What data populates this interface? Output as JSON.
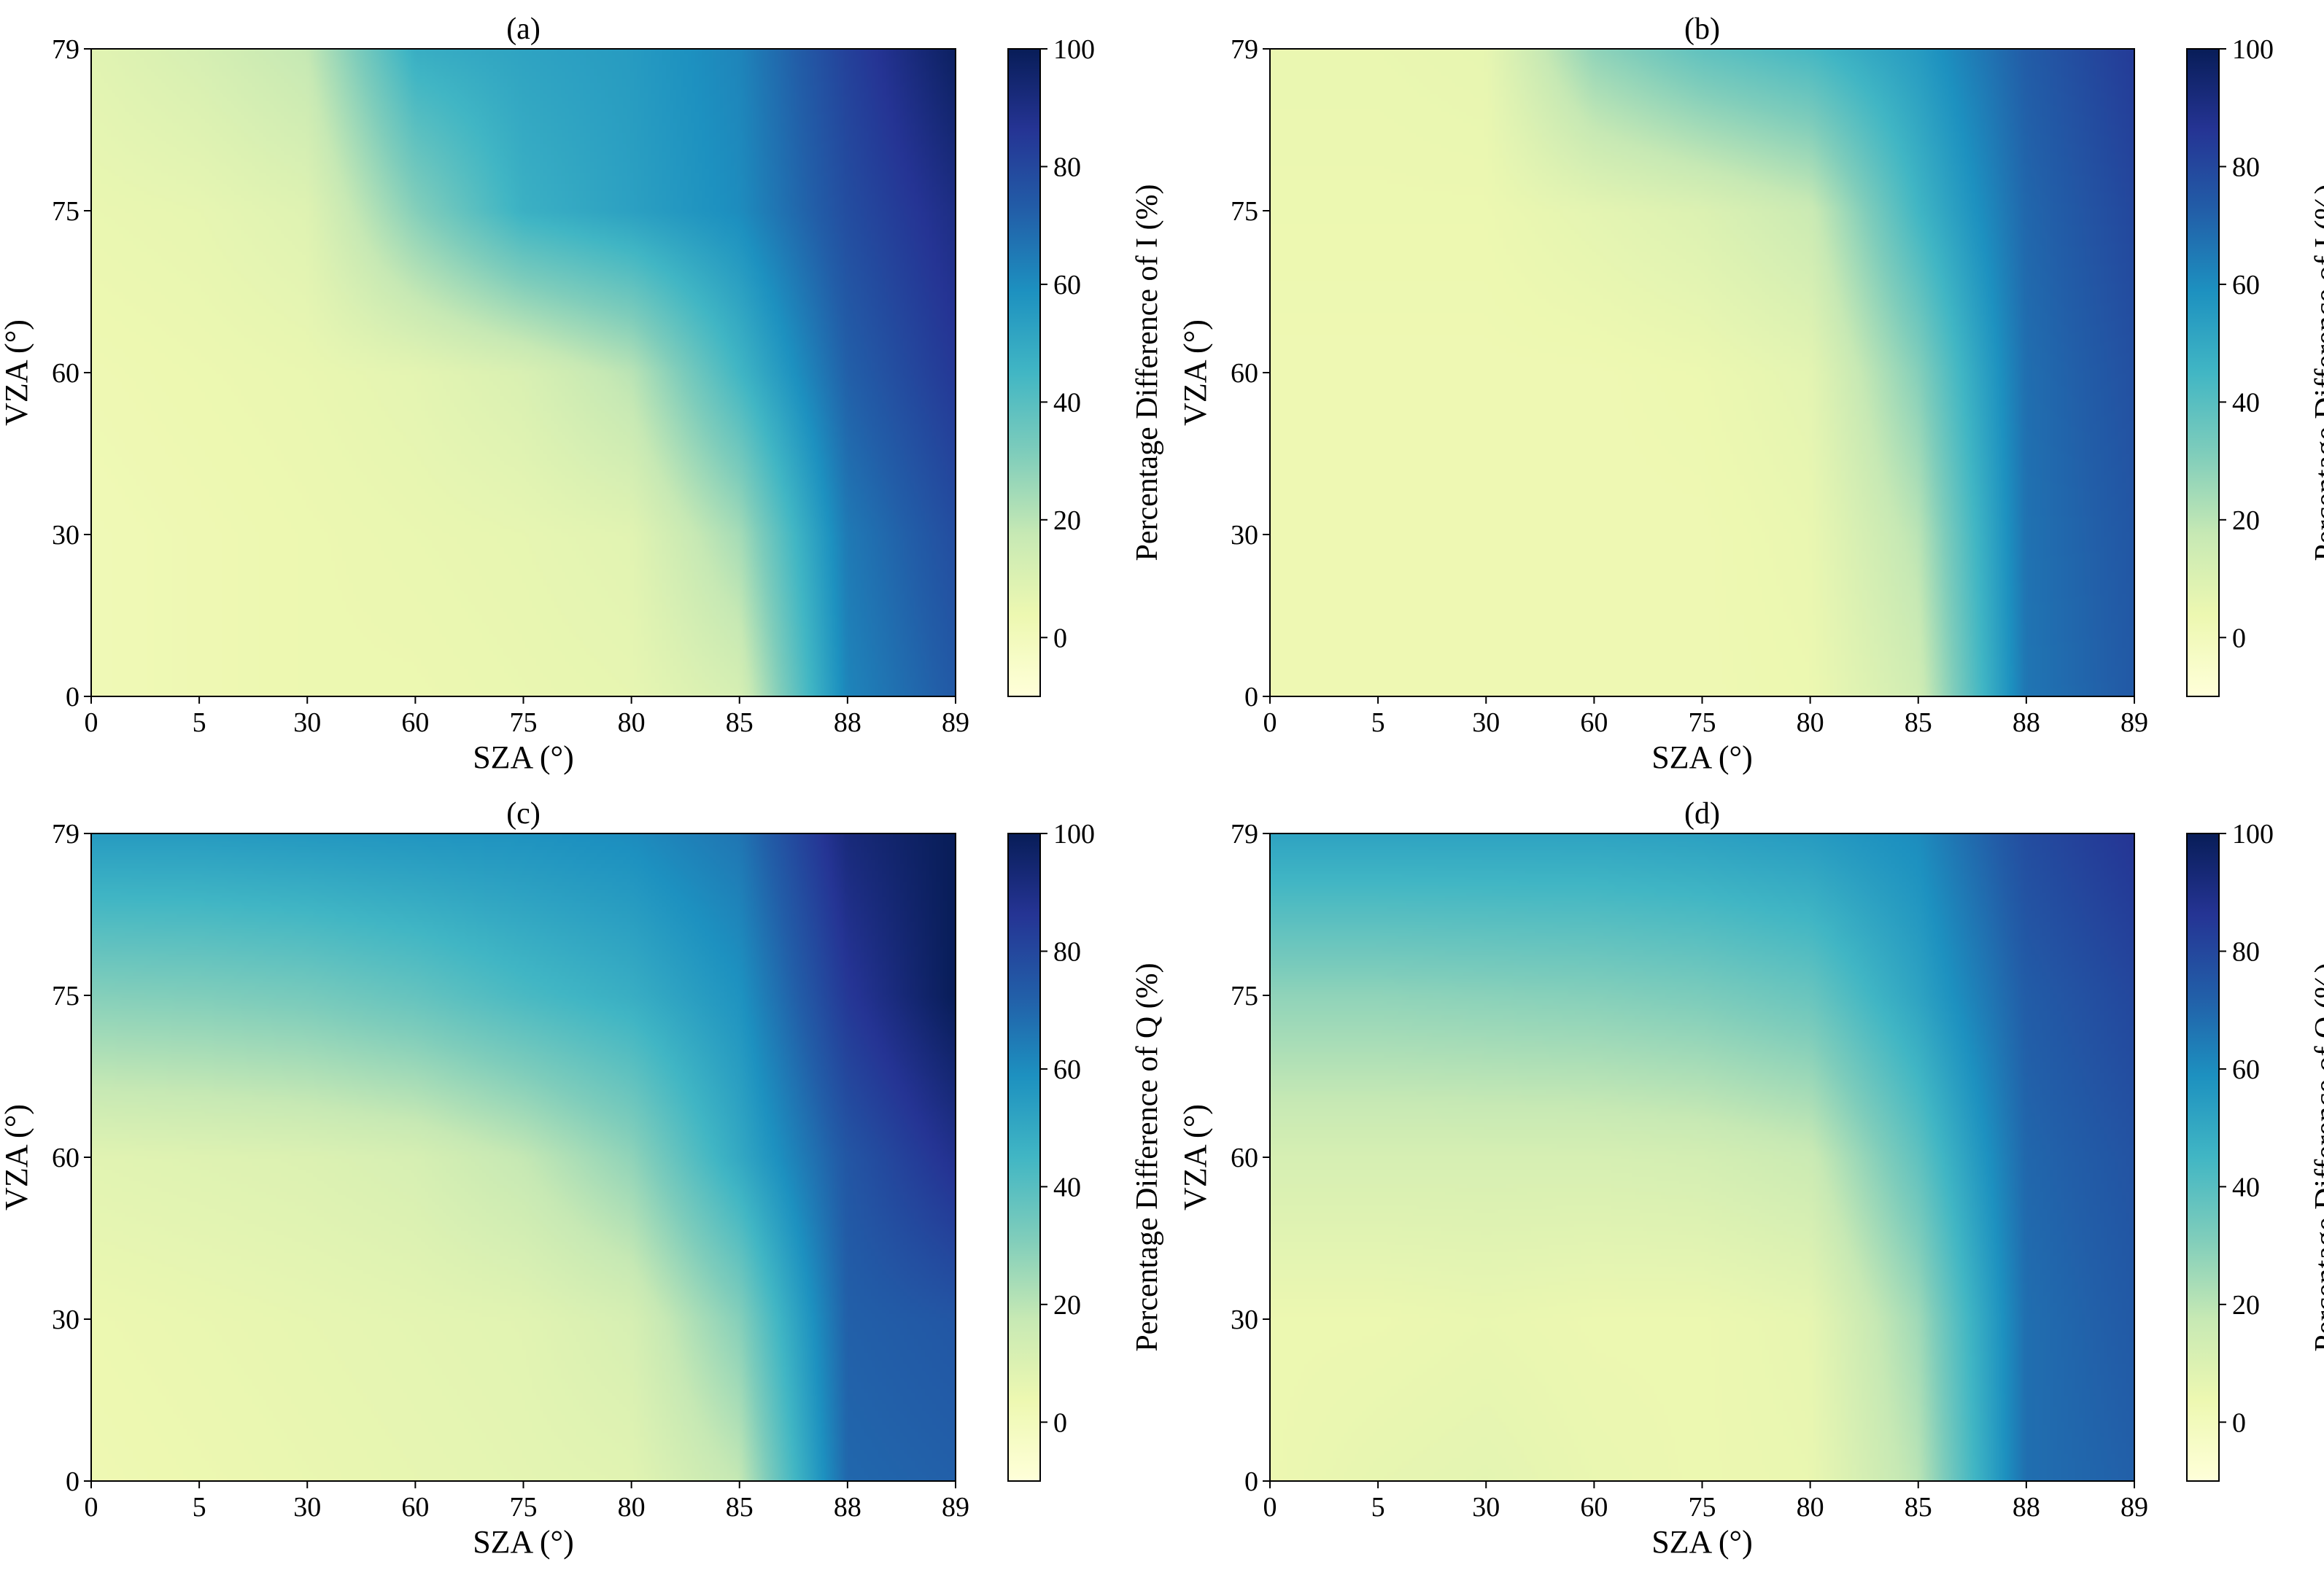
{
  "colormap": {
    "name": "YlGnBu",
    "stops": [
      [
        0.0,
        "#ffffd9"
      ],
      [
        0.125,
        "#edf8b1"
      ],
      [
        0.25,
        "#c7e9b4"
      ],
      [
        0.375,
        "#7fcdbb"
      ],
      [
        0.5,
        "#41b6c4"
      ],
      [
        0.625,
        "#1d91c0"
      ],
      [
        0.75,
        "#225ea8"
      ],
      [
        0.875,
        "#253494"
      ],
      [
        1.0,
        "#081d58"
      ]
    ]
  },
  "chart_data": [
    {
      "type": "heatmap",
      "panel_label": "(a)",
      "xlabel": "SZA (°)",
      "ylabel": "VZA (°)",
      "colorbar_label": "Percentage Difference of I (%)",
      "x_ticks": [
        "0",
        "5",
        "30",
        "60",
        "75",
        "80",
        "85",
        "88",
        "89"
      ],
      "y_ticks": [
        "0",
        "30",
        "60",
        "75",
        "79"
      ],
      "colorbar_ticks": [
        "0",
        "20",
        "40",
        "60",
        "80",
        "100"
      ],
      "clim": [
        -10,
        100
      ],
      "x": [
        "0",
        "5",
        "30",
        "60",
        "75",
        "80",
        "85",
        "88",
        "89"
      ],
      "y": [
        "0",
        "30",
        "60",
        "75",
        "79"
      ],
      "z": [
        [
          2,
          3,
          4,
          4,
          5,
          6,
          12,
          62,
          74
        ],
        [
          2,
          3,
          4,
          5,
          6,
          8,
          24,
          65,
          78
        ],
        [
          3,
          4,
          5,
          7,
          11,
          20,
          45,
          72,
          85
        ],
        [
          5,
          6,
          9,
          30,
          47,
          53,
          60,
          78,
          90
        ],
        [
          8,
          12,
          18,
          48,
          52,
          55,
          62,
          82,
          98
        ]
      ]
    },
    {
      "type": "heatmap",
      "panel_label": "(b)",
      "xlabel": "SZA (°)",
      "ylabel": "VZA (°)",
      "colorbar_label": "Percentage Difference of I (%)",
      "x_ticks": [
        "0",
        "5",
        "30",
        "60",
        "75",
        "80",
        "85",
        "88",
        "89"
      ],
      "y_ticks": [
        "0",
        "30",
        "60",
        "75",
        "79"
      ],
      "colorbar_ticks": [
        "0",
        "20",
        "40",
        "60",
        "80",
        "100"
      ],
      "clim": [
        -10,
        100
      ],
      "x": [
        "0",
        "5",
        "30",
        "60",
        "75",
        "80",
        "85",
        "88",
        "89"
      ],
      "y": [
        "0",
        "30",
        "60",
        "75",
        "79"
      ],
      "z": [
        [
          3,
          3,
          3,
          3,
          3,
          4,
          14,
          66,
          74
        ],
        [
          3,
          3,
          3,
          3,
          3,
          5,
          20,
          67,
          75
        ],
        [
          3,
          3,
          3,
          3,
          4,
          7,
          30,
          68,
          77
        ],
        [
          4,
          4,
          4,
          7,
          10,
          16,
          45,
          70,
          80
        ],
        [
          5,
          5,
          6,
          28,
          38,
          44,
          55,
          73,
          84
        ]
      ]
    },
    {
      "type": "heatmap",
      "panel_label": "(c)",
      "xlabel": "SZA (°)",
      "ylabel": "VZA (°)",
      "colorbar_label": "Percentage Difference of Q (%)",
      "x_ticks": [
        "0",
        "5",
        "30",
        "60",
        "75",
        "80",
        "85",
        "88",
        "89"
      ],
      "y_ticks": [
        "0",
        "30",
        "60",
        "75",
        "79"
      ],
      "colorbar_ticks": [
        "0",
        "20",
        "40",
        "60",
        "80",
        "100"
      ],
      "clim": [
        -10,
        100
      ],
      "x": [
        "0",
        "5",
        "30",
        "60",
        "75",
        "80",
        "85",
        "88",
        "89"
      ],
      "y": [
        "0",
        "30",
        "60",
        "75",
        "79"
      ],
      "z": [
        [
          3,
          4,
          5,
          6,
          7,
          8,
          18,
          70,
          72
        ],
        [
          4,
          5,
          6,
          7,
          8,
          12,
          30,
          72,
          75
        ],
        [
          8,
          9,
          10,
          12,
          18,
          28,
          50,
          75,
          88
        ],
        [
          30,
          31,
          33,
          37,
          43,
          48,
          58,
          85,
          100
        ],
        [
          55,
          55,
          56,
          57,
          58,
          60,
          66,
          92,
          100
        ]
      ]
    },
    {
      "type": "heatmap",
      "panel_label": "(d)",
      "xlabel": "SZA (°)",
      "ylabel": "VZA (°)",
      "colorbar_label": "Percentage Difference of Q (%)",
      "x_ticks": [
        "0",
        "5",
        "30",
        "60",
        "75",
        "80",
        "85",
        "88",
        "89"
      ],
      "y_ticks": [
        "0",
        "30",
        "60",
        "75",
        "79"
      ],
      "colorbar_ticks": [
        "0",
        "20",
        "40",
        "60",
        "80",
        "100"
      ],
      "clim": [
        -10,
        100
      ],
      "x": [
        "0",
        "5",
        "30",
        "60",
        "75",
        "80",
        "85",
        "88",
        "89"
      ],
      "y": [
        "0",
        "30",
        "60",
        "75",
        "79"
      ],
      "z": [
        [
          4,
          6,
          7,
          5,
          4,
          5,
          20,
          68,
          72
        ],
        [
          4,
          4,
          5,
          4,
          4,
          6,
          25,
          68,
          74
        ],
        [
          12,
          12,
          12,
          12,
          13,
          16,
          38,
          70,
          76
        ],
        [
          28,
          28,
          29,
          30,
          32,
          36,
          52,
          73,
          80
        ],
        [
          52,
          52,
          52,
          52,
          53,
          55,
          60,
          78,
          86
        ]
      ]
    }
  ]
}
